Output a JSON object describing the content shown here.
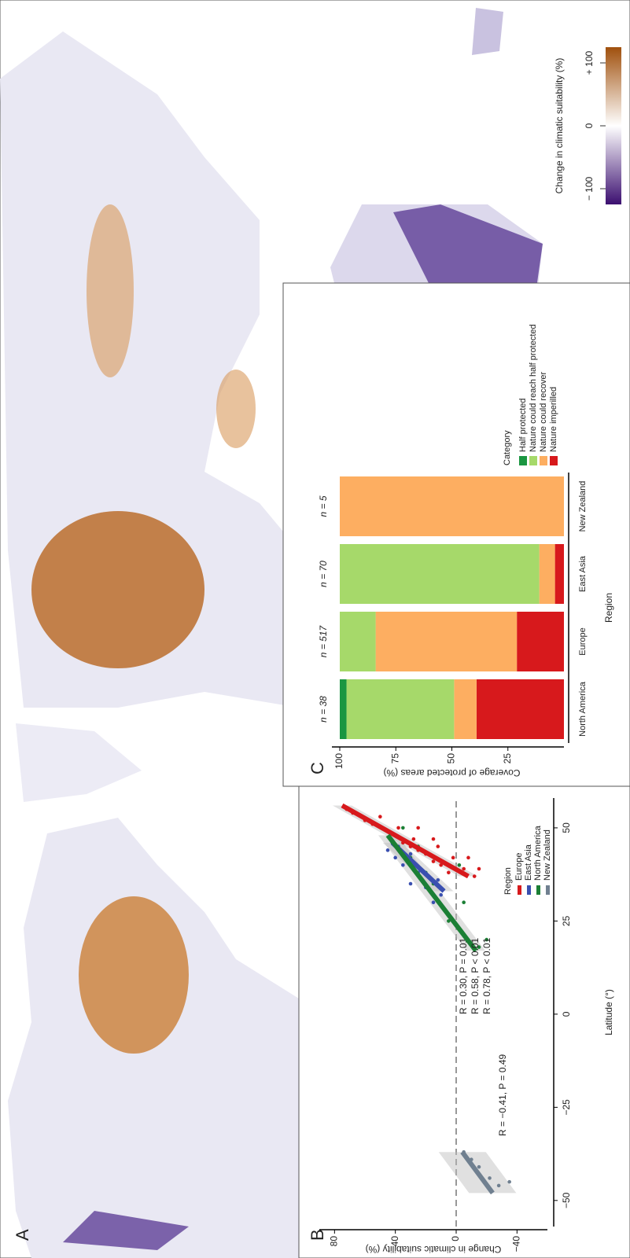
{
  "chart_data": [
    {
      "type": "map",
      "panel": "A",
      "colorbar": {
        "title": "Change in climatic suitability (%)",
        "lim": [
          -125,
          125
        ],
        "ticks": [
          {
            "value": -100,
            "label": "− 100"
          },
          0,
          {
            "value": 100,
            "label": "+ 100"
          }
        ],
        "colors": [
          "#3b0f70",
          "#ffffff",
          "#a0500d"
        ]
      }
    },
    {
      "type": "scatter",
      "panel": "B",
      "xlabel": "Latitude (°)",
      "ylabel": "Change in climatic suitability (%)",
      "xlim": [
        -57,
        58
      ],
      "ylim": [
        -60,
        90
      ],
      "xticks": [
        {
          "value": -50,
          "label": "−50"
        },
        {
          "value": -25,
          "label": "−25"
        },
        0,
        25,
        50
      ],
      "yticks": [
        {
          "value": -40,
          "label": "−40"
        },
        0,
        40,
        80
      ],
      "hline": 0,
      "legend_title": "Region",
      "series": [
        {
          "name": "Europe",
          "color": "#d7191c",
          "x": [
            37,
            38,
            39,
            40,
            41,
            42,
            43,
            44,
            45,
            45,
            46,
            47,
            48,
            49,
            50,
            51,
            52,
            53,
            54,
            55,
            39,
            42,
            47,
            50
          ],
          "values": [
            -12,
            5,
            -5,
            10,
            15,
            -8,
            20,
            25,
            12,
            30,
            35,
            28,
            40,
            45,
            38,
            55,
            60,
            50,
            68,
            72,
            -15,
            2,
            15,
            25
          ],
          "fit_x": [
            37,
            56
          ],
          "fit_values": [
            -8,
            75
          ],
          "stat": "R = 0.78, P < 0.01"
        },
        {
          "name": "East Asia",
          "color": "#3a4fb0",
          "x": [
            30,
            32,
            34,
            35,
            36,
            38,
            40,
            42,
            43,
            44,
            45,
            46
          ],
          "values": [
            15,
            10,
            20,
            30,
            12,
            25,
            35,
            40,
            30,
            45,
            38,
            42
          ],
          "fit_x": [
            33,
            46
          ],
          "fit_values": [
            8,
            42
          ],
          "stat": "R = 0.30, P = 0.01"
        },
        {
          "name": "North America",
          "color": "#1b7f35",
          "x": [
            18,
            20,
            25,
            30,
            35,
            38,
            40,
            42,
            45,
            48,
            50
          ],
          "values": [
            -15,
            -20,
            5,
            -5,
            15,
            20,
            -2,
            30,
            25,
            40,
            35
          ],
          "fit_x": [
            17,
            48
          ],
          "fit_values": [
            -13,
            45
          ],
          "stat": "R = 0.58, P < 0.01"
        },
        {
          "name": "New Zealand",
          "color": "#708090",
          "x": [
            -37,
            -41,
            -44,
            -46,
            -45,
            -39
          ],
          "values": [
            -5,
            -15,
            -22,
            -28,
            -35,
            -10
          ],
          "fit_x": [
            -48,
            -37
          ],
          "fit_values": [
            -24,
            -4
          ],
          "stat": "R = −0.41, P = 0.49"
        }
      ]
    },
    {
      "type": "bar",
      "panel": "C",
      "stacked": true,
      "ylabel": "Coverage of protected areas (%)",
      "xlabel": "Region",
      "categories": [
        "North America",
        "Europe",
        "East Asia",
        "New Zealand"
      ],
      "n_labels": [
        "n = 38",
        "n = 517",
        "n = 70",
        "n = 5"
      ],
      "ylim": [
        0,
        100
      ],
      "yticks": [
        25,
        50,
        75,
        100
      ],
      "legend_title": "Category",
      "series": [
        {
          "name": "Nature imperilled",
          "color": "#d7191c",
          "values": [
            39,
            21,
            4,
            0
          ]
        },
        {
          "name": "Nature could recover",
          "color": "#fdae61",
          "values": [
            10,
            63,
            7,
            100
          ]
        },
        {
          "name": "Nature could reach half protected",
          "color": "#a6d96a",
          "values": [
            48,
            16,
            89,
            0
          ]
        },
        {
          "name": "Half protected",
          "color": "#1a9641",
          "values": [
            3,
            0,
            0,
            0
          ]
        }
      ]
    }
  ]
}
